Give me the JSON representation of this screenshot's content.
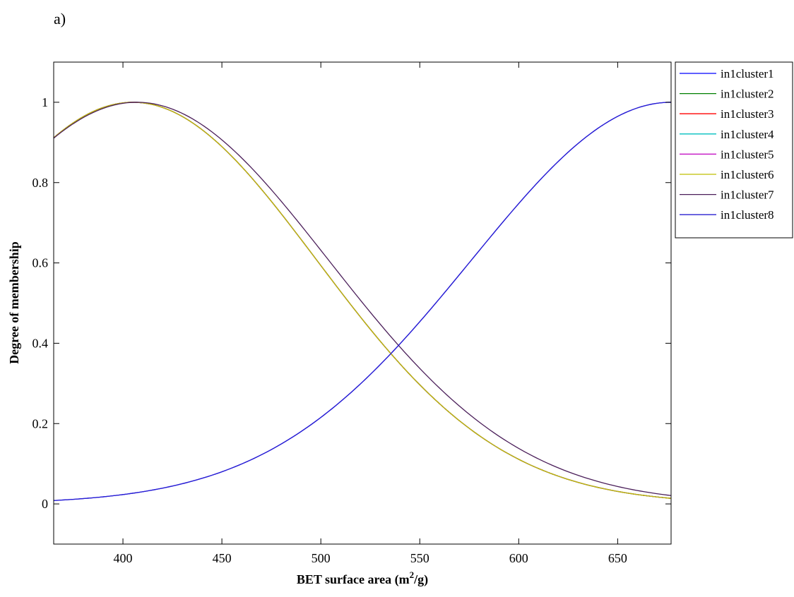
{
  "figure_label": "a)",
  "chart_data": {
    "type": "line",
    "title": "",
    "xlabel_main": "BET surface area (m",
    "xlabel_sup": "2",
    "xlabel_end": "/g)",
    "ylabel": "Degree of membership",
    "xlim": [
      365,
      677
    ],
    "ylim": [
      -0.1,
      1.1
    ],
    "xticks": [
      400,
      450,
      500,
      550,
      600,
      650
    ],
    "yticks": [
      0,
      0.2,
      0.4,
      0.6,
      0.8,
      1
    ],
    "ytick_labels": [
      "0",
      "0.2",
      "0.4",
      "0.6",
      "0.8",
      "1"
    ],
    "grid": false,
    "legend_position": "outside-top-right",
    "series": [
      {
        "name": "in1cluster1",
        "color": "#0000ff",
        "mean": 677,
        "sigma": 101
      },
      {
        "name": "in1cluster2",
        "color": "#008000",
        "mean": 405,
        "sigma": 93
      },
      {
        "name": "in1cluster3",
        "color": "#ff0000",
        "mean": 405,
        "sigma": 93
      },
      {
        "name": "in1cluster4",
        "color": "#00bfbf",
        "mean": 405,
        "sigma": 93
      },
      {
        "name": "in1cluster5",
        "color": "#bf00bf",
        "mean": 405,
        "sigma": 93
      },
      {
        "name": "in1cluster6",
        "color": "#bfbf00",
        "mean": 405,
        "sigma": 93
      },
      {
        "name": "in1cluster7",
        "color": "#4b1f5a",
        "mean": 407,
        "sigma": 97
      },
      {
        "name": "in1cluster8",
        "color": "#2a1fd0",
        "mean": 677,
        "sigma": 101
      }
    ]
  }
}
